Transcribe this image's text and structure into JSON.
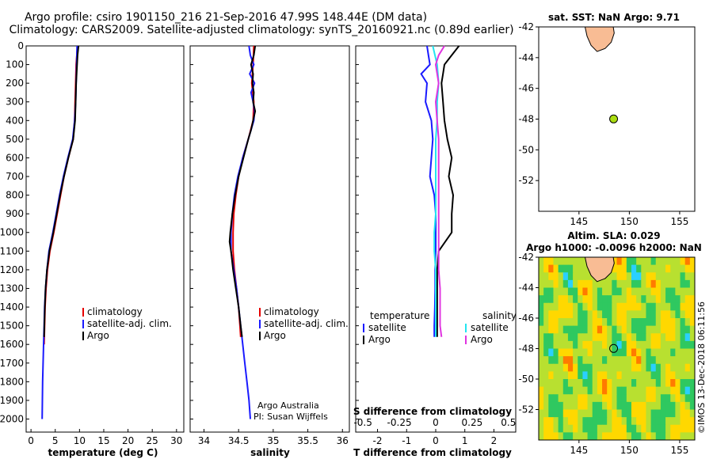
{
  "header": {
    "line1": "Argo profile: csiro 1901150_216 21-Sep-2016 47.99S 148.44E (DM data)",
    "line2": "Climatology: CARS2009. Satellite-adjusted climatology: synTS_20160921.nc (0.89d earlier)"
  },
  "colors": {
    "climatology": "#e60000",
    "satellite": "#1a1aff",
    "argo": "#000000",
    "sat_salinity": "#22e5f0",
    "clim_salinity": "#e033e0",
    "land": "#f8bc94",
    "marker": "#aadd11"
  },
  "chart_data": [
    {
      "type": "line",
      "id": "temperature",
      "xlabel": "temperature (deg C)",
      "ylabel": "",
      "xlim": [
        -1,
        31.5
      ],
      "ylim": [
        2070,
        0
      ],
      "xticks": [
        "0",
        "5",
        "10",
        "15",
        "20",
        "25",
        "30"
      ],
      "yticks": [
        "0",
        "100",
        "200",
        "300",
        "400",
        "500",
        "600",
        "700",
        "800",
        "900",
        "1000",
        "1100",
        "1200",
        "1300",
        "1400",
        "1500",
        "1600",
        "1700",
        "1800",
        "1900",
        "2000"
      ],
      "legend": [
        "climatology",
        "satellite-adj. clim.",
        "Argo"
      ],
      "series": [
        {
          "name": "climatology",
          "depth": [
            0,
            100,
            200,
            300,
            400,
            500,
            600,
            700,
            800,
            900,
            1000,
            1100,
            1200,
            1300,
            1400,
            1500,
            1600
          ],
          "values": [
            9.6,
            9.3,
            9.2,
            9.1,
            9.0,
            8.7,
            7.7,
            6.8,
            6.1,
            5.4,
            4.7,
            3.9,
            3.4,
            3.1,
            2.9,
            2.8,
            2.7
          ]
        },
        {
          "name": "satellite-adj. clim.",
          "depth": [
            0,
            100,
            200,
            300,
            400,
            500,
            600,
            700,
            800,
            900,
            1000,
            1100,
            1200,
            1300,
            1400,
            1500,
            1600,
            1700,
            1800,
            1900,
            2000
          ],
          "values": [
            9.5,
            9.4,
            9.3,
            9.2,
            9.0,
            8.6,
            7.6,
            6.7,
            5.9,
            5.2,
            4.5,
            3.7,
            3.3,
            3.0,
            2.8,
            2.7,
            2.6,
            2.5,
            2.4,
            2.35,
            2.3
          ]
        },
        {
          "name": "Argo",
          "depth": [
            0,
            50,
            100,
            200,
            300,
            400,
            500,
            600,
            700,
            800,
            900,
            1000,
            1100,
            1200,
            1300,
            1400,
            1500,
            1560
          ],
          "values": [
            9.8,
            9.6,
            9.5,
            9.3,
            9.2,
            9.1,
            8.7,
            7.7,
            6.8,
            6.0,
            5.3,
            4.6,
            3.8,
            3.3,
            3.0,
            2.85,
            2.75,
            2.7
          ]
        }
      ]
    },
    {
      "type": "line",
      "id": "salinity",
      "xlabel": "salinity",
      "ylabel": "",
      "xlim": [
        33.8,
        36.1
      ],
      "ylim": [
        2070,
        0
      ],
      "xticks": [
        "34",
        "34.5",
        "35",
        "35.5",
        "36"
      ],
      "legend": [
        "climatology",
        "satellite-adj. clim.",
        "Argo"
      ],
      "annotation": [
        "Argo Australia",
        "PI: Susan Wijffels"
      ],
      "series": [
        {
          "name": "climatology",
          "depth": [
            0,
            100,
            200,
            300,
            400,
            500,
            600,
            700,
            800,
            900,
            1000,
            1100,
            1200,
            1300,
            1400,
            1500,
            1560
          ],
          "values": [
            34.72,
            34.71,
            34.69,
            34.72,
            34.71,
            34.64,
            34.56,
            34.5,
            34.46,
            34.43,
            34.42,
            34.42,
            34.44,
            34.47,
            34.5,
            34.52,
            34.53
          ]
        },
        {
          "name": "satellite-adj. clim.",
          "depth": [
            0,
            50,
            100,
            150,
            200,
            250,
            300,
            350,
            400,
            500,
            600,
            700,
            800,
            900,
            1000,
            1100,
            1200,
            1300,
            1400,
            1500,
            1600,
            1700,
            1800,
            1900,
            2000
          ],
          "values": [
            34.65,
            34.67,
            34.72,
            34.66,
            34.73,
            34.68,
            34.71,
            34.73,
            34.72,
            34.64,
            34.56,
            34.49,
            34.44,
            34.41,
            34.39,
            34.39,
            34.43,
            34.47,
            34.5,
            34.53,
            34.56,
            34.59,
            34.62,
            34.65,
            34.67
          ]
        },
        {
          "name": "Argo",
          "depth": [
            0,
            50,
            100,
            150,
            200,
            250,
            300,
            350,
            400,
            450,
            500,
            600,
            700,
            800,
            900,
            1000,
            1050,
            1100,
            1200,
            1300,
            1400,
            1500,
            1560
          ],
          "values": [
            34.74,
            34.72,
            34.68,
            34.71,
            34.7,
            34.72,
            34.71,
            34.74,
            34.71,
            34.68,
            34.64,
            34.57,
            34.5,
            34.45,
            34.41,
            34.38,
            34.37,
            34.39,
            34.42,
            34.46,
            34.5,
            34.53,
            34.55
          ]
        }
      ]
    },
    {
      "type": "line",
      "id": "differences",
      "xlabel": "T difference from climatology",
      "xlabel2": "S difference from climatology",
      "xlim": [
        -2.75,
        2.75
      ],
      "ylim": [
        2070,
        0
      ],
      "xticks": [
        "-2",
        "-1",
        "0",
        "1",
        "2"
      ],
      "xticks2": [
        "-0.5",
        "-0.25",
        "0",
        "0.25",
        "0.5"
      ],
      "legend_t": {
        "title": "temperature",
        "items": [
          "satellite",
          "Argo"
        ]
      },
      "legend_s": {
        "title": "salinity",
        "items": [
          "satellite",
          "Argo"
        ]
      },
      "series": [
        {
          "name": "T satellite",
          "depth": [
            0,
            50,
            100,
            150,
            200,
            300,
            400,
            500,
            600,
            700,
            800,
            900,
            1000,
            1100,
            1200,
            1300,
            1400,
            1500,
            1560
          ],
          "values": [
            -0.3,
            -0.25,
            -0.2,
            -0.5,
            -0.3,
            -0.35,
            -0.15,
            -0.1,
            -0.15,
            -0.2,
            -0.05,
            0.0,
            0.0,
            0.0,
            -0.02,
            -0.02,
            -0.03,
            -0.05,
            -0.05
          ]
        },
        {
          "name": "T Argo",
          "depth": [
            0,
            50,
            100,
            150,
            200,
            300,
            400,
            500,
            600,
            700,
            800,
            900,
            1000,
            1100,
            1200,
            1300,
            1400,
            1500,
            1560
          ],
          "values": [
            0.8,
            0.55,
            0.3,
            0.25,
            0.2,
            0.25,
            0.3,
            0.4,
            0.55,
            0.45,
            0.6,
            0.55,
            0.55,
            0.1,
            0.05,
            0.05,
            0.05,
            0.05,
            0.05
          ]
        },
        {
          "name": "S satellite",
          "depth": [
            0,
            100,
            200,
            300,
            400,
            500,
            600,
            700,
            800,
            900,
            1000,
            1100,
            1200,
            1300,
            1400,
            1500,
            1560
          ],
          "values": [
            -0.02,
            0.01,
            0.02,
            0.01,
            0.01,
            0.0,
            0.0,
            0.0,
            0.0,
            0.0,
            -0.01,
            -0.01,
            0.0,
            0.0,
            0.0,
            0.0,
            0.0
          ]
        },
        {
          "name": "S Argo",
          "depth": [
            0,
            50,
            100,
            200,
            300,
            400,
            500,
            600,
            700,
            800,
            900,
            1000,
            1100,
            1200,
            1300,
            1400,
            1500,
            1560
          ],
          "values": [
            0.06,
            0.02,
            0.0,
            0.02,
            0.0,
            0.01,
            0.02,
            0.02,
            0.02,
            0.02,
            0.02,
            0.02,
            0.02,
            0.02,
            0.03,
            0.03,
            0.03,
            0.04
          ]
        }
      ]
    },
    {
      "type": "scatter",
      "id": "sst_map",
      "title": "sat. SST: NaN Argo: 9.71",
      "xlim": [
        141,
        156.5
      ],
      "ylim": [
        -54,
        -42
      ],
      "xticks": [
        "145",
        "150",
        "155"
      ],
      "yticks": [
        "-42",
        "-44",
        "-46",
        "-48",
        "-50",
        "-52"
      ],
      "points": [
        {
          "lon": 148.44,
          "lat": -47.99
        }
      ]
    },
    {
      "type": "heatmap",
      "id": "sla_map",
      "title1": "Altim. SLA: 0.029",
      "title2": "Argo h1000: -0.0096 h2000: NaN",
      "xlim": [
        141,
        156.5
      ],
      "ylim": [
        -54,
        -42
      ],
      "xticks": [
        "145",
        "150",
        "155"
      ],
      "yticks": [
        "-42",
        "-44",
        "-46",
        "-48",
        "-50",
        "-52"
      ],
      "points": [
        {
          "lon": 148.44,
          "lat": -47.99
        }
      ]
    }
  ],
  "footer": {
    "credit": "©IMOS 13-Dec-2018 06:11:56"
  }
}
